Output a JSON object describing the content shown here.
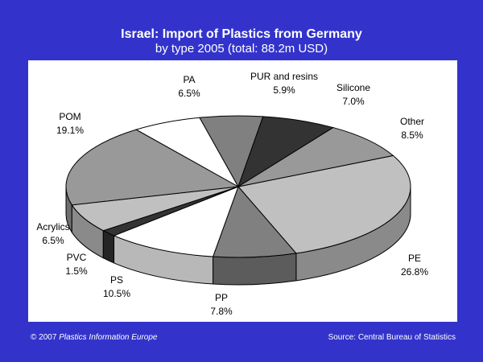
{
  "header": {
    "title": "Israel: Import of Plastics from Germany",
    "subtitle": "by type 2005 (total: 88.2m USD)"
  },
  "footer": {
    "copyright": "© 2007",
    "publisher": "Plastics Information Europe",
    "source": "Source: Central Bureau of Statistics"
  },
  "chart_data": {
    "type": "pie",
    "title": "Israel: Import of Plastics from Germany",
    "subtitle": "by type 2005 (total: 88.2m USD)",
    "style": "3d",
    "slices": [
      {
        "name": "PE",
        "value": 26.8,
        "label": "26.8%",
        "color": "#c0c0c0"
      },
      {
        "name": "PP",
        "value": 7.8,
        "label": "7.8%",
        "color": "#808080"
      },
      {
        "name": "PS",
        "value": 10.5,
        "label": "10.5%",
        "color": "#ffffff"
      },
      {
        "name": "PVC",
        "value": 1.5,
        "label": "1.5%",
        "color": "#333333"
      },
      {
        "name": "Acrylics",
        "value": 6.5,
        "label": "6.5%",
        "color": "#c0c0c0"
      },
      {
        "name": "POM",
        "value": 19.1,
        "label": "19.1%",
        "color": "#999999"
      },
      {
        "name": "PA",
        "value": 6.5,
        "label": "6.5%",
        "color": "#ffffff"
      },
      {
        "name": "PUR and resins",
        "value": 5.9,
        "label": "5.9%",
        "color": "#808080"
      },
      {
        "name": "Silicone",
        "value": 7.0,
        "label": "7.0%",
        "color": "#333333"
      },
      {
        "name": "Other",
        "value": 8.5,
        "label": "8.5%",
        "color": "#999999"
      }
    ],
    "colors": {
      "background": "#3333cc",
      "plot_area": "#ffffff",
      "outline": "#000000"
    }
  }
}
